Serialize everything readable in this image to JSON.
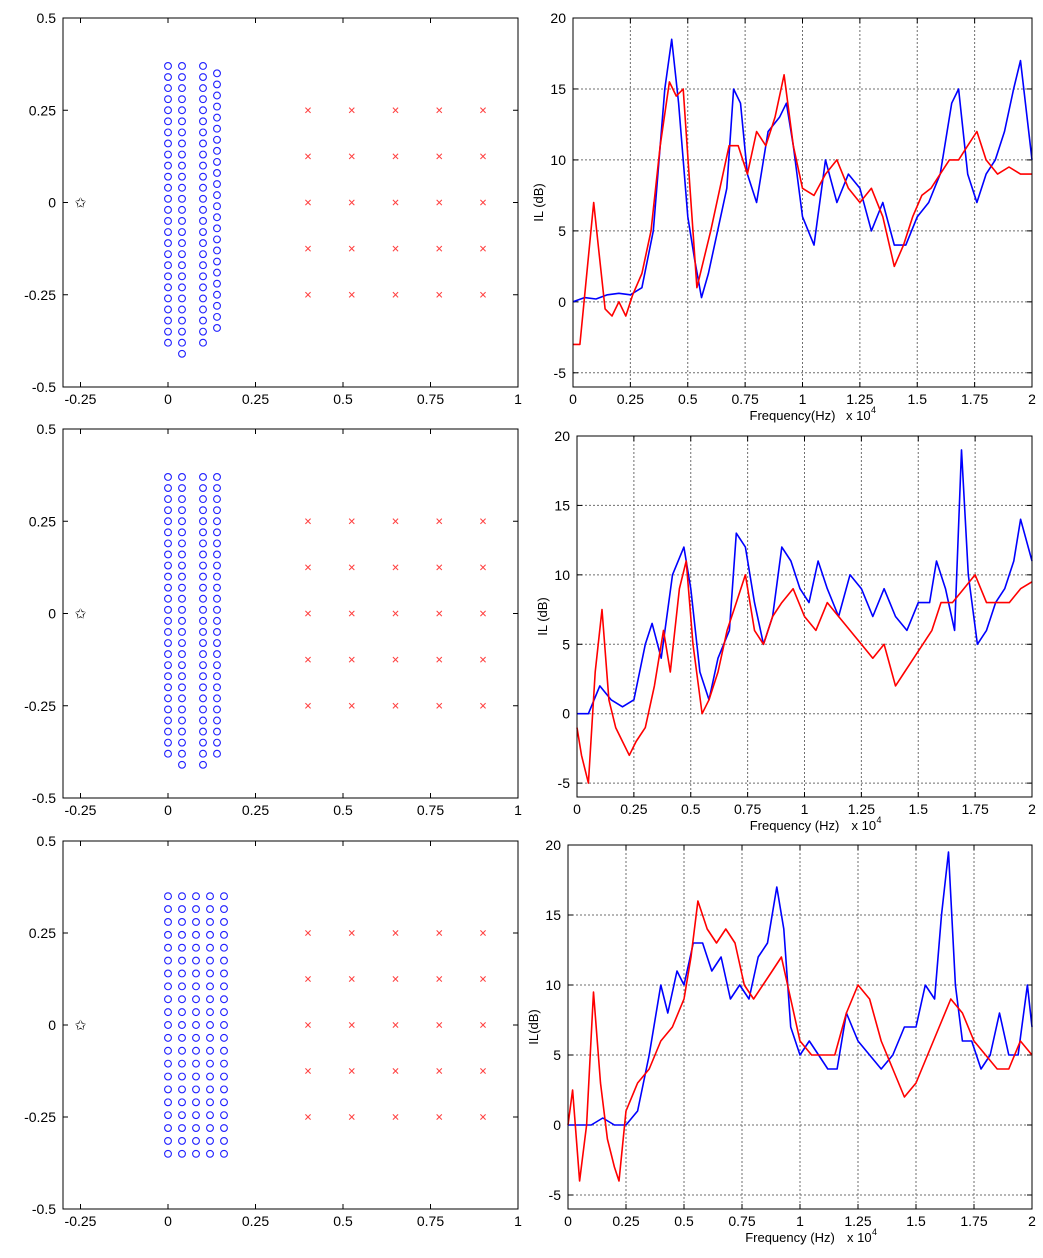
{
  "figure": {
    "axes_color": "#000000",
    "grid_color": "#6e6e6e"
  },
  "chart_data": [
    {
      "panel": "layout-1",
      "type": "scatter",
      "xlim": [
        -0.3,
        1.0
      ],
      "ylim": [
        -0.5,
        0.5
      ],
      "xticks": [
        -0.25,
        0,
        0.25,
        0.5,
        0.75,
        1
      ],
      "xtick_labels": [
        "-0.25",
        "0",
        "0.25",
        "0.5",
        "0.75",
        "1"
      ],
      "yticks": [
        -0.5,
        -0.25,
        0,
        0.25,
        0.5
      ],
      "ytick_labels": [
        "-0.5",
        "-0.25",
        "0",
        "0.25",
        "0.5"
      ],
      "grid": false,
      "source": {
        "x": -0.25,
        "y": 0,
        "marker": "star",
        "color": "#000000"
      },
      "scatterers": {
        "marker": "circle",
        "color": "#1f1fff",
        "lattice": "triangular",
        "columns_x": [
          0,
          0.04,
          0.1,
          0.14
        ],
        "column_y_ranges": [
          [
            -0.38,
            0.38
          ],
          [
            -0.41,
            0.39
          ],
          [
            -0.38,
            0.39
          ],
          [
            -0.34,
            0.37
          ]
        ],
        "spacing_y": 0.03
      },
      "receivers": {
        "marker": "x",
        "color": "#ff4040",
        "x": [
          0.4,
          0.525,
          0.65,
          0.775,
          0.9
        ],
        "y": [
          -0.25,
          -0.125,
          0,
          0.125,
          0.25
        ]
      }
    },
    {
      "panel": "il-1",
      "type": "line",
      "xlim": [
        0,
        20000
      ],
      "ylim": [
        -6,
        20
      ],
      "xticks": [
        0,
        2500,
        5000,
        7500,
        10000,
        12500,
        15000,
        17500,
        20000
      ],
      "xtick_labels": [
        "0",
        "0.25",
        "0.5",
        "0.75",
        "1",
        "1.25",
        "1.5",
        "1.75",
        "2"
      ],
      "yticks": [
        -5,
        0,
        5,
        10,
        15,
        20
      ],
      "ytick_labels": [
        "-5",
        "0",
        "5",
        "10",
        "15",
        "20"
      ],
      "grid": true,
      "xlabel": "Frequency(Hz)",
      "xlabel_multiplier": "x 10",
      "xlabel_exponent": "4",
      "ylabel": "IL (dB)",
      "series": [
        {
          "color": "#0000ff",
          "x": [
            0,
            500,
            1000,
            1500,
            2000,
            2500,
            3000,
            3500,
            4000,
            4300,
            4600,
            5000,
            5300,
            5600,
            5900,
            6300,
            6700,
            7000,
            7300,
            7600,
            8000,
            8500,
            9000,
            9300,
            9600,
            10000,
            10500,
            11000,
            11500,
            12000,
            12500,
            13000,
            13500,
            14000,
            14500,
            15000,
            15500,
            16000,
            16500,
            16800,
            17200,
            17600,
            18000,
            18400,
            18800,
            19200,
            19500,
            20000
          ],
          "y": [
            0,
            0.3,
            0.2,
            0.5,
            0.6,
            0.5,
            1,
            5,
            15,
            18.5,
            14,
            6,
            3,
            0.3,
            2,
            5,
            8,
            15,
            14,
            9,
            7,
            12,
            13,
            14,
            11,
            6,
            4,
            10,
            7,
            9,
            8,
            5,
            7,
            4,
            4,
            6,
            7,
            9,
            14,
            15,
            9,
            7,
            9,
            10,
            12,
            15,
            17,
            10
          ]
        },
        {
          "color": "#ff0000",
          "x": [
            0,
            300,
            600,
            900,
            1100,
            1400,
            1700,
            2000,
            2300,
            2600,
            3000,
            3400,
            3800,
            4200,
            4500,
            4800,
            5100,
            5400,
            5700,
            6000,
            6400,
            6800,
            7200,
            7600,
            8000,
            8400,
            8800,
            9200,
            9600,
            10000,
            10500,
            11000,
            11500,
            12000,
            12500,
            13000,
            13500,
            14000,
            14400,
            14800,
            15200,
            15600,
            16000,
            16400,
            16800,
            17200,
            17600,
            18000,
            18500,
            19000,
            19500,
            20000
          ],
          "y": [
            -3,
            -3,
            2,
            7,
            4,
            -0.5,
            -1,
            0,
            -1,
            0.5,
            2,
            5,
            11,
            15.5,
            14.5,
            15,
            8,
            1,
            3,
            5,
            8,
            11,
            11,
            9,
            12,
            11,
            13,
            16,
            11,
            8,
            7.5,
            9,
            10,
            8,
            7,
            8,
            6,
            2.5,
            4,
            6,
            7.5,
            8,
            9,
            10,
            10,
            11,
            12,
            10,
            9,
            9.5,
            9,
            9
          ]
        }
      ]
    },
    {
      "panel": "layout-2",
      "type": "scatter",
      "xlim": [
        -0.3,
        1.0
      ],
      "ylim": [
        -0.5,
        0.5
      ],
      "xticks": [
        -0.25,
        0,
        0.25,
        0.5,
        0.75,
        1
      ],
      "xtick_labels": [
        "-0.25",
        "0",
        "0.25",
        "0.5",
        "0.75",
        "1"
      ],
      "yticks": [
        -0.5,
        -0.25,
        0,
        0.25,
        0.5
      ],
      "ytick_labels": [
        "-0.5",
        "-0.25",
        "0",
        "0.25",
        "0.5"
      ],
      "grid": false,
      "source": {
        "x": -0.25,
        "y": 0,
        "marker": "star",
        "color": "#000000"
      },
      "scatterers": {
        "marker": "circle",
        "color": "#1f1fff",
        "lattice": "triangular",
        "columns_x": [
          0,
          0.04,
          0.1,
          0.14
        ],
        "column_y_ranges": [
          [
            -0.38,
            0.38
          ],
          [
            -0.41,
            0.39
          ],
          [
            -0.41,
            0.39
          ],
          [
            -0.38,
            0.37
          ]
        ],
        "spacing_y": 0.03
      },
      "receivers": {
        "marker": "x",
        "color": "#ff4040",
        "x": [
          0.4,
          0.525,
          0.65,
          0.775,
          0.9
        ],
        "y": [
          -0.25,
          -0.125,
          0,
          0.125,
          0.25
        ]
      }
    },
    {
      "panel": "il-2",
      "type": "line",
      "xlim": [
        0,
        20000
      ],
      "ylim": [
        -6,
        20
      ],
      "xticks": [
        0,
        2500,
        5000,
        7500,
        10000,
        12500,
        15000,
        17500,
        20000
      ],
      "xtick_labels": [
        "0",
        "0.25",
        "0.5",
        "0.75",
        "1",
        "1.25",
        "1.5",
        "1.75",
        "2"
      ],
      "yticks": [
        -5,
        0,
        5,
        10,
        15,
        20
      ],
      "ytick_labels": [
        "-5",
        "0",
        "5",
        "10",
        "15",
        "20"
      ],
      "grid": true,
      "xlabel": "Frequency (Hz)",
      "xlabel_multiplier": "x 10",
      "xlabel_exponent": "4",
      "ylabel": "IL (dB)",
      "series": [
        {
          "color": "#0000ff",
          "x": [
            0,
            500,
            1000,
            1500,
            2000,
            2500,
            3000,
            3300,
            3700,
            4200,
            4700,
            5000,
            5400,
            5800,
            6200,
            6700,
            7000,
            7400,
            7800,
            8200,
            8600,
            9000,
            9400,
            9800,
            10200,
            10600,
            11000,
            11500,
            12000,
            12500,
            13000,
            13500,
            14000,
            14500,
            15000,
            15500,
            15800,
            16200,
            16600,
            16900,
            17200,
            17600,
            18000,
            18400,
            18800,
            19200,
            19500,
            20000
          ],
          "y": [
            0,
            0,
            2,
            1,
            0.5,
            1,
            5,
            6.5,
            4,
            10,
            12,
            9,
            3,
            1,
            4,
            6,
            13,
            12,
            8,
            5,
            7,
            12,
            11,
            9,
            8,
            11,
            9,
            7,
            10,
            9,
            7,
            9,
            7,
            6,
            8,
            8,
            11,
            9,
            6,
            19,
            10,
            5,
            6,
            8,
            9,
            11,
            14,
            11
          ]
        },
        {
          "color": "#ff0000",
          "x": [
            0,
            200,
            500,
            800,
            1100,
            1400,
            1700,
            2000,
            2300,
            2600,
            3000,
            3400,
            3800,
            4100,
            4500,
            4800,
            5100,
            5500,
            5800,
            6200,
            6600,
            7000,
            7400,
            7800,
            8200,
            8600,
            9000,
            9500,
            10000,
            10500,
            11000,
            11500,
            12000,
            12500,
            13000,
            13500,
            14000,
            14400,
            14800,
            15200,
            15600,
            16000,
            16500,
            17000,
            17500,
            18000,
            18500,
            19000,
            19500,
            20000
          ],
          "y": [
            -1,
            -3,
            -5,
            3,
            7.5,
            1,
            -1,
            -2,
            -3,
            -2,
            -1,
            2,
            6,
            3,
            9,
            11,
            5,
            0,
            1,
            3,
            6,
            8,
            10,
            6,
            5,
            7,
            8,
            9,
            7,
            6,
            8,
            7,
            6,
            5,
            4,
            5,
            2,
            3,
            4,
            5,
            6,
            8,
            8,
            9,
            10,
            8,
            8,
            8,
            9,
            9.5
          ]
        }
      ]
    },
    {
      "panel": "layout-3",
      "type": "scatter",
      "xlim": [
        -0.3,
        1.0
      ],
      "ylim": [
        -0.5,
        0.5
      ],
      "xticks": [
        -0.25,
        0,
        0.25,
        0.5,
        0.75,
        1
      ],
      "xtick_labels": [
        "-0.25",
        "0",
        "0.25",
        "0.5",
        "0.75",
        "1"
      ],
      "yticks": [
        -0.5,
        -0.25,
        0,
        0.25,
        0.5
      ],
      "ytick_labels": [
        "-0.5",
        "-0.25",
        "0",
        "0.25",
        "0.5"
      ],
      "grid": false,
      "source": {
        "x": -0.25,
        "y": 0,
        "marker": "star",
        "color": "#000000"
      },
      "scatterers": {
        "marker": "circle",
        "color": "#1f1fff",
        "lattice": "square",
        "columns_x": [
          0,
          0.04,
          0.08,
          0.12,
          0.16
        ],
        "column_y_ranges": [
          [
            -0.35,
            0.35
          ],
          [
            -0.35,
            0.35
          ],
          [
            -0.35,
            0.35
          ],
          [
            -0.35,
            0.35
          ],
          [
            -0.35,
            0.35
          ]
        ],
        "spacing_y": 0.035
      },
      "receivers": {
        "marker": "x",
        "color": "#ff4040",
        "x": [
          0.4,
          0.525,
          0.65,
          0.775,
          0.9
        ],
        "y": [
          -0.25,
          -0.125,
          0,
          0.125,
          0.25
        ]
      }
    },
    {
      "panel": "il-3",
      "type": "line",
      "xlim": [
        0,
        20000
      ],
      "ylim": [
        -6,
        20
      ],
      "xticks": [
        0,
        2500,
        5000,
        7500,
        10000,
        12500,
        15000,
        17500,
        20000
      ],
      "xtick_labels": [
        "0",
        "0.25",
        "0.5",
        "0.75",
        "1",
        "1.25",
        "1.5",
        "1.75",
        "2"
      ],
      "yticks": [
        -5,
        0,
        5,
        10,
        15,
        20
      ],
      "ytick_labels": [
        "-5",
        "0",
        "5",
        "10",
        "15",
        "20"
      ],
      "grid": true,
      "xlabel": "Frequency (Hz)",
      "xlabel_multiplier": "x 10",
      "xlabel_exponent": "4",
      "ylabel": "IL(dB)",
      "series": [
        {
          "color": "#0000ff",
          "x": [
            0,
            500,
            1000,
            1500,
            2000,
            2500,
            3000,
            3500,
            4000,
            4300,
            4700,
            5000,
            5400,
            5800,
            6200,
            6600,
            7000,
            7400,
            7800,
            8200,
            8600,
            9000,
            9300,
            9600,
            10000,
            10400,
            10800,
            11200,
            11600,
            12000,
            12500,
            13000,
            13500,
            14000,
            14500,
            15000,
            15400,
            15800,
            16100,
            16400,
            16700,
            17000,
            17400,
            17800,
            18200,
            18600,
            19000,
            19400,
            19800,
            20000
          ],
          "y": [
            0,
            0,
            0,
            0.5,
            0,
            0,
            1,
            5,
            10,
            8,
            11,
            10,
            13,
            13,
            11,
            12,
            9,
            10,
            9,
            12,
            13,
            17,
            14,
            7,
            5,
            6,
            5,
            4,
            4,
            8,
            6,
            5,
            4,
            5,
            7,
            7,
            10,
            9,
            15,
            19.5,
            10,
            6,
            6,
            4,
            5,
            8,
            5,
            5,
            10,
            7
          ]
        },
        {
          "color": "#ff0000",
          "x": [
            0,
            200,
            500,
            800,
            1100,
            1400,
            1700,
            2000,
            2200,
            2500,
            3000,
            3500,
            4000,
            4500,
            5000,
            5300,
            5600,
            6000,
            6400,
            6800,
            7200,
            7600,
            8000,
            8400,
            8800,
            9200,
            9600,
            10000,
            10500,
            11000,
            11500,
            12000,
            12500,
            13000,
            13500,
            14000,
            14500,
            15000,
            15500,
            16000,
            16500,
            17000,
            17500,
            18000,
            18500,
            19000,
            19500,
            20000
          ],
          "y": [
            0,
            2.5,
            -4,
            0,
            9.5,
            3,
            -1,
            -3,
            -4,
            1,
            3,
            4,
            6,
            7,
            9,
            12,
            16,
            14,
            13,
            14,
            13,
            10,
            9,
            10,
            11,
            12,
            9,
            6,
            5,
            5,
            5,
            8,
            10,
            9,
            6,
            4,
            2,
            3,
            5,
            7,
            9,
            8,
            6,
            5,
            4,
            4,
            6,
            5
          ]
        }
      ]
    }
  ]
}
